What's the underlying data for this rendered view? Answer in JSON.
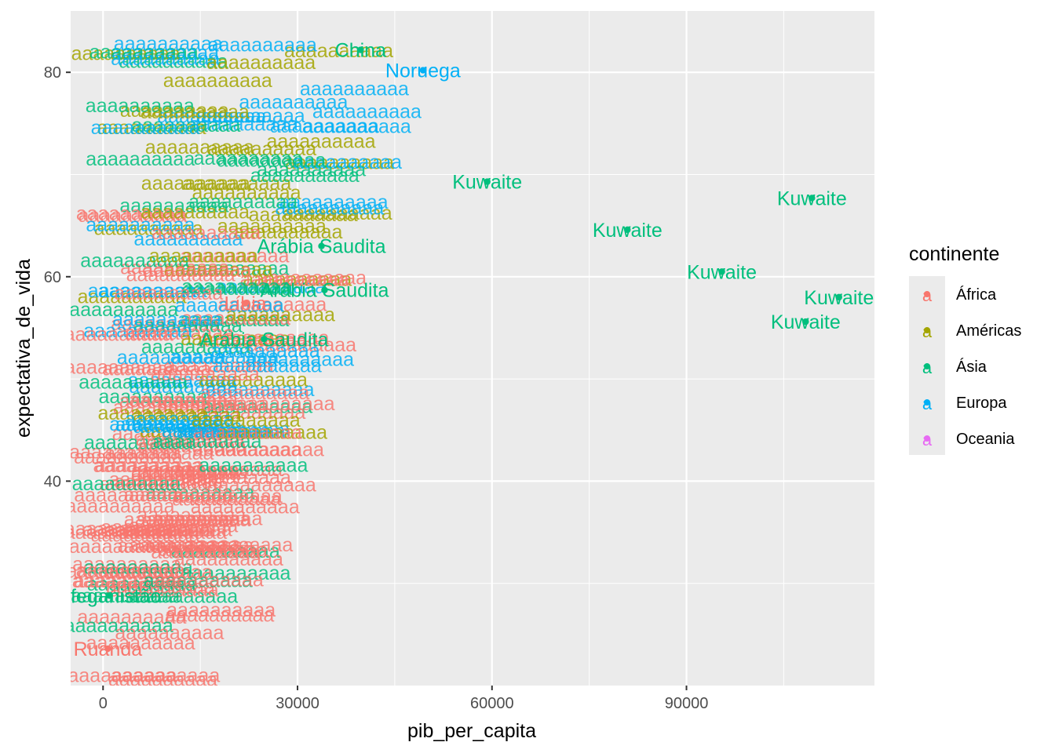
{
  "chart_data": {
    "type": "scatter",
    "title": "",
    "xlabel": "pib_per_capita",
    "ylabel": "expectativa_de_vida",
    "xlim": [
      -5000,
      119000
    ],
    "ylim": [
      20,
      86
    ],
    "x_ticks": [
      0,
      30000,
      60000,
      90000
    ],
    "y_ticks": [
      40,
      60,
      80
    ],
    "grid": true,
    "legend": {
      "title": "continente",
      "placement": "right",
      "key_glyph": "a",
      "entries": [
        {
          "name": "África",
          "color": "#F8766D"
        },
        {
          "name": "Américas",
          "color": "#A3A500"
        },
        {
          "name": "Ásia",
          "color": "#00BF7D"
        },
        {
          "name": "Europa",
          "color": "#00B0F6"
        },
        {
          "name": "Oceania",
          "color": "#E76BF3"
        }
      ]
    },
    "points": [
      {
        "label": "Kuwaite",
        "continent": "Ásia",
        "x": 108382,
        "y": 55.6
      },
      {
        "label": "Kuwaite",
        "continent": "Ásia",
        "x": 113523,
        "y": 58.0
      },
      {
        "label": "Kuwaite",
        "continent": "Ásia",
        "x": 95458,
        "y": 60.5
      },
      {
        "label": "Kuwaite",
        "continent": "Ásia",
        "x": 80895,
        "y": 64.6
      },
      {
        "label": "Kuwaite",
        "continent": "Ásia",
        "x": 109348,
        "y": 67.7
      },
      {
        "label": "Kuwaite",
        "continent": "Ásia",
        "x": 59265,
        "y": 69.3
      },
      {
        "label": "Arábia Saudita",
        "continent": "Ásia",
        "x": 34168,
        "y": 58.7
      },
      {
        "label": "Arábia Saudita",
        "continent": "Ásia",
        "x": 33693,
        "y": 63.0
      },
      {
        "label": "Arábia Saudita",
        "continent": "Ásia",
        "x": 24837,
        "y": 53.9
      },
      {
        "label": "China",
        "continent": "Ásia",
        "x": 39725,
        "y": 82.2
      },
      {
        "label": "Noruega",
        "continent": "Europa",
        "x": 49357,
        "y": 80.2
      },
      {
        "label": "Ruanda",
        "continent": "África",
        "x": 737,
        "y": 23.6
      },
      {
        "label": "Afeganistão",
        "continent": "Ásia",
        "x": 974,
        "y": 28.8
      },
      {
        "label": "Líbia",
        "continent": "África",
        "x": 21951,
        "y": 57.4
      }
    ]
  }
}
